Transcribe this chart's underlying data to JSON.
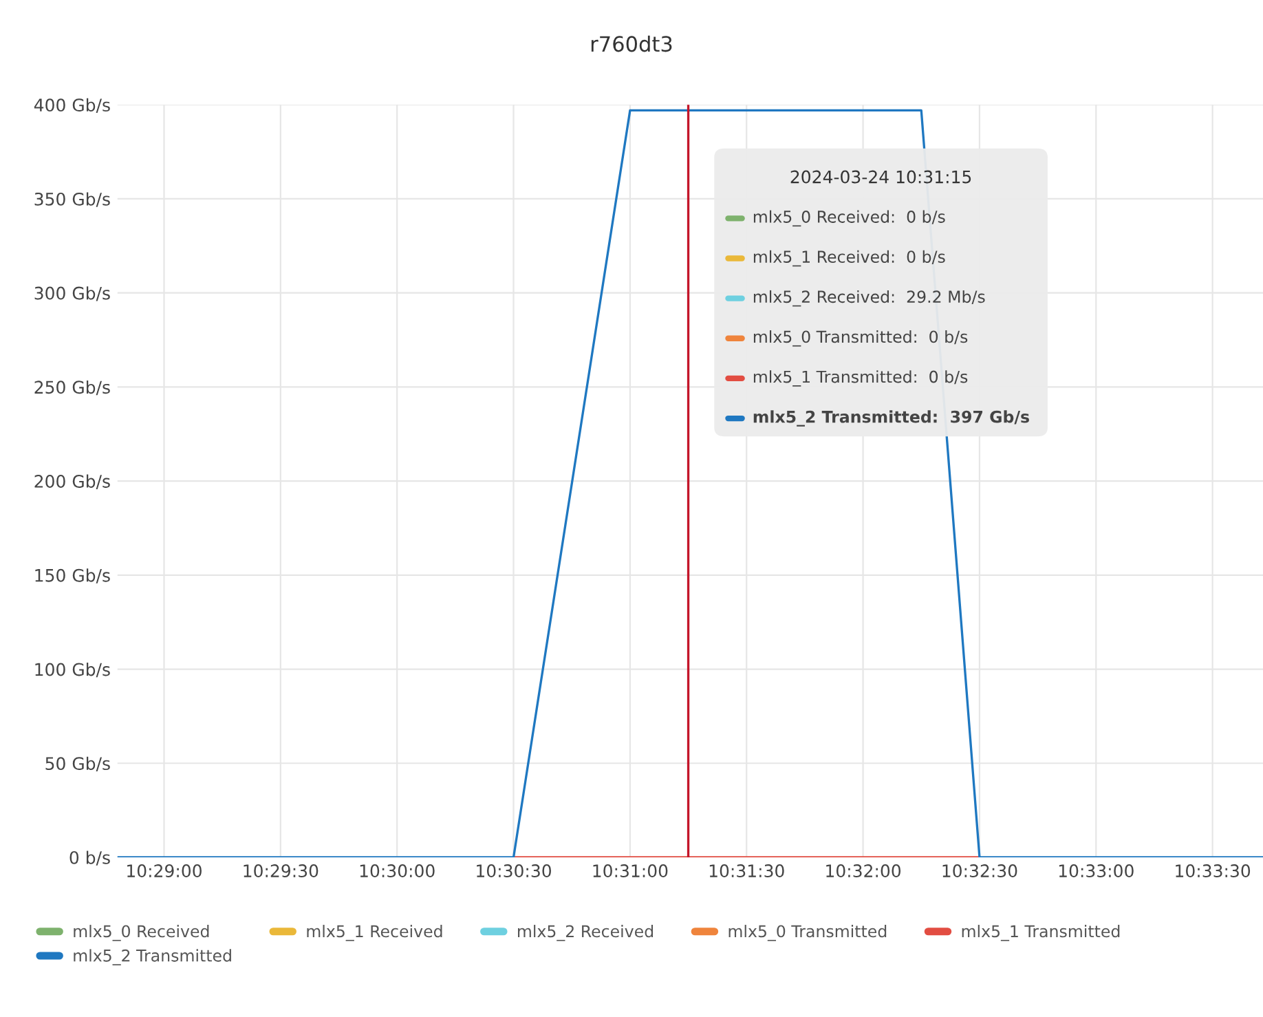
{
  "chart_data": {
    "type": "line",
    "title": "r760dt3",
    "xlim": [
      10.48,
      10.561944
    ],
    "xticks": [
      {
        "value": 10.483333,
        "label": "10:29:00"
      },
      {
        "value": 10.491667,
        "label": "10:29:30"
      },
      {
        "value": 10.5,
        "label": "10:30:00"
      },
      {
        "value": 10.508333,
        "label": "10:30:30"
      },
      {
        "value": 10.516667,
        "label": "10:31:00"
      },
      {
        "value": 10.525,
        "label": "10:31:30"
      },
      {
        "value": 10.533333,
        "label": "10:32:00"
      },
      {
        "value": 10.541667,
        "label": "10:32:30"
      },
      {
        "value": 10.55,
        "label": "10:33:00"
      },
      {
        "value": 10.558333,
        "label": "10:33:30"
      }
    ],
    "ylim": [
      0,
      400
    ],
    "yticks": [
      {
        "value": 0,
        "label": "0 b/s"
      },
      {
        "value": 50,
        "label": "50 Gb/s"
      },
      {
        "value": 100,
        "label": "100 Gb/s"
      },
      {
        "value": 150,
        "label": "150 Gb/s"
      },
      {
        "value": 200,
        "label": "200 Gb/s"
      },
      {
        "value": 250,
        "label": "250 Gb/s"
      },
      {
        "value": 300,
        "label": "300 Gb/s"
      },
      {
        "value": 350,
        "label": "350 Gb/s"
      },
      {
        "value": 400,
        "label": "400 Gb/s"
      }
    ],
    "grid": true,
    "legend": "bottom",
    "series": [
      {
        "name": "mlx5_0 Received",
        "color": "#7eb26d"
      },
      {
        "name": "mlx5_1 Received",
        "color": "#eab839"
      },
      {
        "name": "mlx5_2 Received",
        "color": "#6ed0e0"
      },
      {
        "name": "mlx5_0 Transmitted",
        "color": "#ef843c"
      },
      {
        "name": "mlx5_1 Transmitted",
        "color": "#e24d42",
        "x": [
          10.508333,
          10.541667
        ],
        "values": [
          0,
          0
        ]
      },
      {
        "name": "mlx5_2 Transmitted",
        "color": "#1f78c1",
        "x": [
          10.48,
          10.508333,
          10.516667,
          10.5375,
          10.541667,
          10.561944
        ],
        "values": [
          0,
          0,
          397,
          397,
          0,
          0
        ]
      }
    ],
    "ref_lines": [
      {
        "axis": "x",
        "value": 10.520833,
        "color": "#c4162a"
      }
    ],
    "annotations": [
      "2024-03-24 10:31:15",
      "mlx5_0 Received:  0 b/s",
      "mlx5_1 Received:  0 b/s",
      "mlx5_2 Received:  29.2 Mb/s",
      "mlx5_0 Transmitted:  0 b/s",
      "mlx5_1 Transmitted:  0 b/s",
      "mlx5_2 Transmitted:  397 Gb/s"
    ]
  }
}
